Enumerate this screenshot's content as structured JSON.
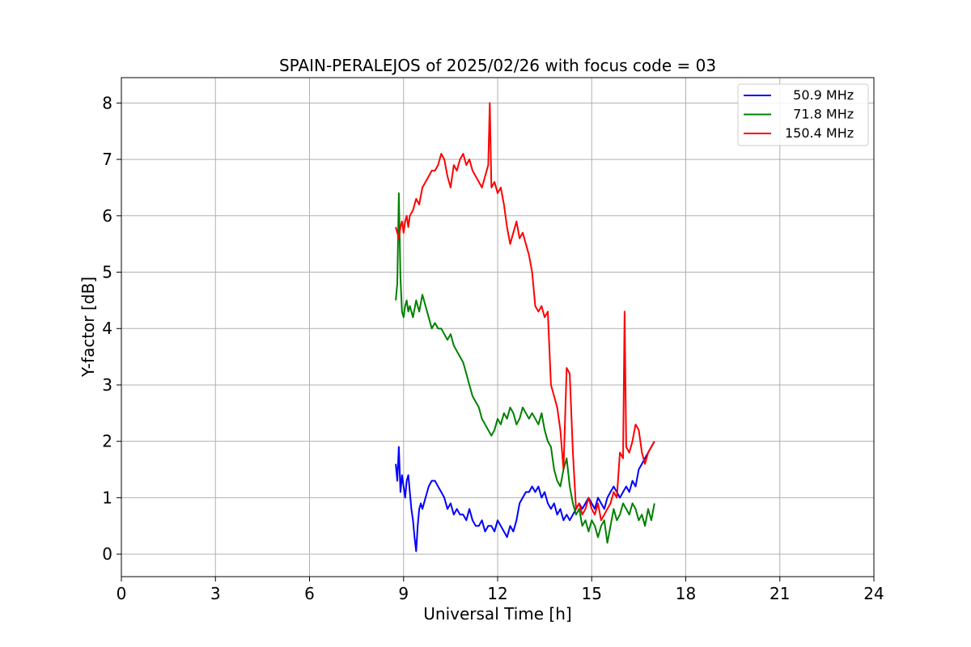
{
  "chart_data": {
    "type": "line",
    "title": "SPAIN-PERALEJOS of 2025/02/26 with focus code = 03",
    "xlabel": "Universal Time [h]",
    "ylabel": "Y-factor [dB]",
    "xlim": [
      0,
      24
    ],
    "ylim": [
      -0.4,
      8.45
    ],
    "xticks": [
      0,
      3,
      6,
      9,
      12,
      15,
      18,
      21,
      24
    ],
    "yticks": [
      0,
      1,
      2,
      3,
      4,
      5,
      6,
      7,
      8
    ],
    "grid": true,
    "legend_position": "top-right",
    "series": [
      {
        "name": "  50.9 MHz",
        "color": "#0000ff",
        "x": [
          8.75,
          8.8,
          8.85,
          8.9,
          8.95,
          9.0,
          9.05,
          9.1,
          9.15,
          9.2,
          9.25,
          9.3,
          9.35,
          9.4,
          9.45,
          9.5,
          9.55,
          9.6,
          9.7,
          9.8,
          9.9,
          10.0,
          10.1,
          10.2,
          10.3,
          10.4,
          10.5,
          10.6,
          10.7,
          10.8,
          10.9,
          11.0,
          11.1,
          11.2,
          11.3,
          11.4,
          11.5,
          11.6,
          11.7,
          11.8,
          11.9,
          12.0,
          12.1,
          12.2,
          12.3,
          12.4,
          12.5,
          12.6,
          12.7,
          12.8,
          12.9,
          13.0,
          13.1,
          13.2,
          13.3,
          13.4,
          13.5,
          13.6,
          13.7,
          13.8,
          13.9,
          14.0,
          14.1,
          14.2,
          14.3,
          14.4,
          14.5,
          14.6,
          14.7,
          14.8,
          14.9,
          15.0,
          15.1,
          15.2,
          15.3,
          15.4,
          15.5,
          15.6,
          15.7,
          15.8,
          15.9,
          16.0,
          16.1,
          16.2,
          16.3,
          16.4,
          16.5,
          16.6,
          16.7,
          16.8,
          16.9,
          17.0
        ],
        "y": [
          1.6,
          1.3,
          1.9,
          1.1,
          1.4,
          1.2,
          1.0,
          1.3,
          1.4,
          1.1,
          0.8,
          0.6,
          0.3,
          0.05,
          0.5,
          0.8,
          0.9,
          0.8,
          1.0,
          1.2,
          1.3,
          1.3,
          1.2,
          1.1,
          1.0,
          0.8,
          0.9,
          0.7,
          0.8,
          0.7,
          0.7,
          0.6,
          0.8,
          0.6,
          0.5,
          0.5,
          0.6,
          0.4,
          0.5,
          0.5,
          0.4,
          0.6,
          0.5,
          0.4,
          0.3,
          0.5,
          0.4,
          0.6,
          0.9,
          1.0,
          1.1,
          1.1,
          1.2,
          1.1,
          1.2,
          1.0,
          1.1,
          0.9,
          0.8,
          0.9,
          0.7,
          0.8,
          0.6,
          0.7,
          0.6,
          0.7,
          0.8,
          0.9,
          0.8,
          0.9,
          1.0,
          0.9,
          0.8,
          1.0,
          0.9,
          0.8,
          1.0,
          1.1,
          1.2,
          1.1,
          1.0,
          1.1,
          1.2,
          1.1,
          1.3,
          1.2,
          1.5,
          1.6,
          1.7,
          1.8,
          1.9,
          2.0
        ]
      },
      {
        "name": "  71.8 MHz",
        "color": "#008000",
        "x": [
          8.75,
          8.8,
          8.85,
          8.9,
          8.95,
          9.0,
          9.05,
          9.1,
          9.15,
          9.2,
          9.3,
          9.4,
          9.5,
          9.6,
          9.7,
          9.8,
          9.9,
          10.0,
          10.1,
          10.2,
          10.3,
          10.4,
          10.5,
          10.6,
          10.7,
          10.8,
          10.9,
          11.0,
          11.1,
          11.2,
          11.3,
          11.4,
          11.5,
          11.6,
          11.7,
          11.8,
          11.9,
          12.0,
          12.1,
          12.2,
          12.3,
          12.4,
          12.5,
          12.6,
          12.7,
          12.8,
          12.9,
          13.0,
          13.1,
          13.2,
          13.3,
          13.4,
          13.5,
          13.6,
          13.7,
          13.8,
          13.9,
          14.0,
          14.1,
          14.2,
          14.3,
          14.4,
          14.5,
          14.6,
          14.7,
          14.8,
          14.9,
          15.0,
          15.1,
          15.2,
          15.3,
          15.4,
          15.5,
          15.6,
          15.7,
          15.8,
          15.9,
          16.0,
          16.1,
          16.2,
          16.3,
          16.4,
          16.5,
          16.6,
          16.7,
          16.8,
          16.9,
          17.0
        ],
        "y": [
          4.5,
          4.8,
          6.4,
          4.9,
          4.3,
          4.2,
          4.4,
          4.5,
          4.3,
          4.4,
          4.2,
          4.5,
          4.3,
          4.6,
          4.4,
          4.2,
          4.0,
          4.1,
          4.0,
          4.0,
          3.9,
          3.8,
          3.9,
          3.7,
          3.6,
          3.5,
          3.4,
          3.2,
          3.0,
          2.8,
          2.7,
          2.6,
          2.4,
          2.3,
          2.2,
          2.1,
          2.2,
          2.4,
          2.3,
          2.5,
          2.4,
          2.6,
          2.5,
          2.3,
          2.4,
          2.6,
          2.5,
          2.4,
          2.5,
          2.4,
          2.3,
          2.5,
          2.2,
          2.0,
          1.9,
          1.5,
          1.3,
          1.2,
          1.5,
          1.7,
          1.2,
          0.9,
          0.7,
          0.8,
          0.5,
          0.6,
          0.4,
          0.6,
          0.5,
          0.3,
          0.5,
          0.6,
          0.2,
          0.5,
          0.8,
          0.6,
          0.7,
          0.9,
          0.8,
          0.7,
          0.9,
          0.8,
          0.6,
          0.7,
          0.5,
          0.8,
          0.6,
          0.9
        ]
      },
      {
        "name": "150.4 MHz",
        "color": "#ff0000",
        "x": [
          8.75,
          8.8,
          8.85,
          8.9,
          8.95,
          9.0,
          9.05,
          9.1,
          9.15,
          9.2,
          9.3,
          9.4,
          9.5,
          9.6,
          9.7,
          9.8,
          9.9,
          10.0,
          10.1,
          10.2,
          10.3,
          10.4,
          10.5,
          10.6,
          10.7,
          10.8,
          10.9,
          11.0,
          11.1,
          11.2,
          11.3,
          11.4,
          11.5,
          11.6,
          11.7,
          11.75,
          11.8,
          11.9,
          12.0,
          12.1,
          12.2,
          12.3,
          12.4,
          12.5,
          12.6,
          12.7,
          12.8,
          12.9,
          13.0,
          13.1,
          13.2,
          13.3,
          13.4,
          13.5,
          13.6,
          13.7,
          13.8,
          13.9,
          14.0,
          14.1,
          14.2,
          14.3,
          14.4,
          14.5,
          14.6,
          14.7,
          14.8,
          14.9,
          15.0,
          15.1,
          15.2,
          15.3,
          15.4,
          15.5,
          15.6,
          15.7,
          15.8,
          15.9,
          16.0,
          16.05,
          16.1,
          16.2,
          16.3,
          16.4,
          16.5,
          16.6,
          16.7,
          16.8,
          16.9,
          17.0
        ],
        "y": [
          5.8,
          5.7,
          5.6,
          5.8,
          5.9,
          5.7,
          5.9,
          6.0,
          5.8,
          6.0,
          6.1,
          6.3,
          6.2,
          6.5,
          6.6,
          6.7,
          6.8,
          6.8,
          6.9,
          7.1,
          7.0,
          6.7,
          6.5,
          6.9,
          6.8,
          7.0,
          7.1,
          6.9,
          7.0,
          6.8,
          6.7,
          6.6,
          6.5,
          6.7,
          6.9,
          8.0,
          6.5,
          6.6,
          6.4,
          6.5,
          6.2,
          5.8,
          5.5,
          5.7,
          5.9,
          5.6,
          5.7,
          5.5,
          5.3,
          5.0,
          4.4,
          4.3,
          4.4,
          4.2,
          4.3,
          3.0,
          2.8,
          2.6,
          2.2,
          1.5,
          3.3,
          3.2,
          1.8,
          0.8,
          0.9,
          0.7,
          0.8,
          1.0,
          0.8,
          0.7,
          0.9,
          0.6,
          0.7,
          0.8,
          0.9,
          1.1,
          1.0,
          1.8,
          1.7,
          4.3,
          1.9,
          1.8,
          2.0,
          2.3,
          2.2,
          1.8,
          1.6,
          1.8,
          1.9,
          2.0
        ]
      }
    ]
  }
}
